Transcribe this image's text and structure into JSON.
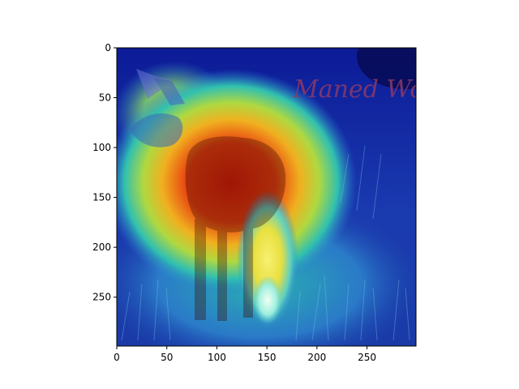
{
  "image": {
    "description_hidden": true,
    "watermark_text": "Maned Wolf",
    "overlay": "jet heatmap"
  },
  "axes": {
    "xlim": [
      0,
      299
    ],
    "ylim": [
      299,
      0
    ],
    "x_ticks": [
      0,
      50,
      100,
      150,
      200,
      250
    ],
    "y_ticks": [
      0,
      50,
      100,
      150,
      200,
      250
    ],
    "x_tick_labels": [
      "0",
      "50",
      "100",
      "150",
      "200",
      "250"
    ],
    "y_tick_labels": [
      "0",
      "50",
      "100",
      "150",
      "200",
      "250"
    ]
  },
  "colors": {
    "background_dark": "#0a1a8c",
    "heat_hot": "#e02a10",
    "heat_warm": "#f0d020",
    "heat_mid": "#30c0a0",
    "heat_cool": "#2050c0",
    "watermark": "#8a3a6a"
  }
}
